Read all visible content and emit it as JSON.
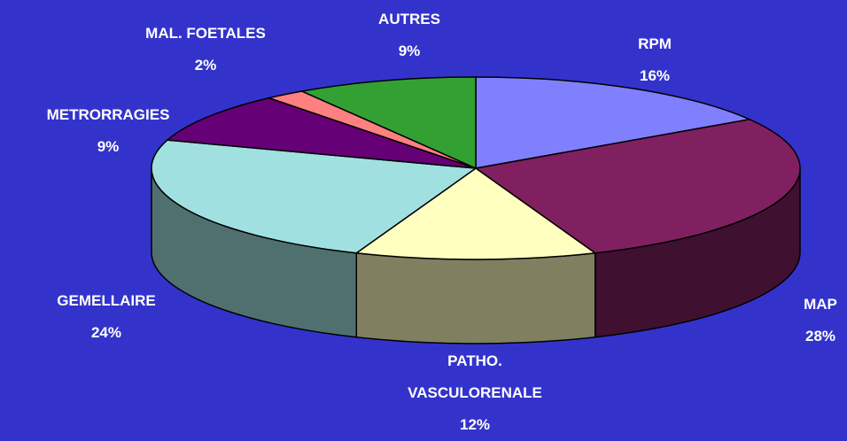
{
  "chart_data": {
    "type": "pie3d",
    "categories": [
      "RPM",
      "MAP",
      "PATHO. VASCULORENALE",
      "GEMELLAIRE",
      "METRORRAGIES",
      "MAL. FOETALES",
      "AUTRES"
    ],
    "values": [
      16,
      28,
      12,
      24,
      9,
      2,
      9
    ],
    "value_labels": [
      "16%",
      "28%",
      "12%",
      "24%",
      "9%",
      "2%",
      "9%"
    ],
    "colors": [
      "#8080ff",
      "#802060",
      "#ffffc0",
      "#a0e0e0",
      "#660077",
      "#ff8080",
      "#33a033"
    ]
  }
}
